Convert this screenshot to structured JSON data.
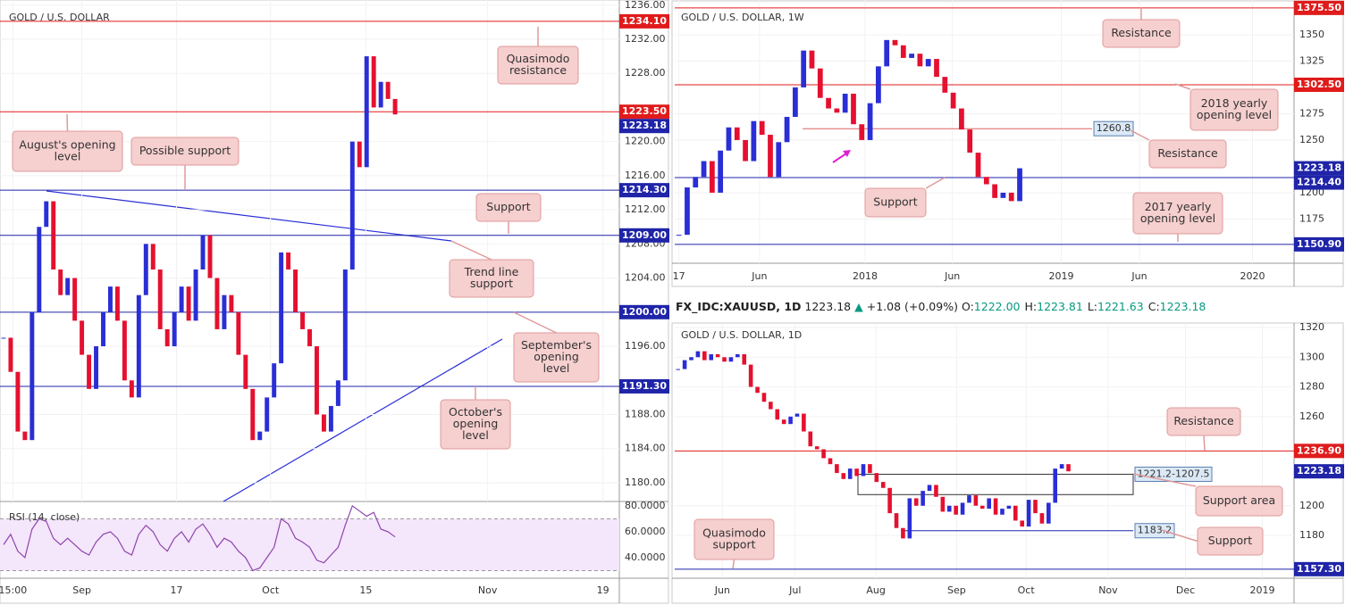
{
  "chart_data": [
    {
      "type": "candlestick",
      "title": "GOLD / U.S. DOLLAR",
      "up_color": "#2a2ed6",
      "down_color": "#e5102f",
      "grid": true,
      "values": [
        1197,
        1193,
        1186,
        1185,
        1200,
        1210,
        1213,
        1205,
        1202,
        1204,
        1199,
        1195,
        1191,
        1196,
        1200,
        1203,
        1199,
        1192,
        1190,
        1202,
        1208,
        1205,
        1198,
        1196,
        1200,
        1203,
        1199,
        1205,
        1209,
        1204,
        1198,
        1202,
        1200,
        1195,
        1191,
        1185,
        1186,
        1190,
        1194,
        1207,
        1205,
        1200,
        1198,
        1196,
        1188,
        1186,
        1189,
        1192,
        1205,
        1220,
        1217,
        1230,
        1224,
        1227,
        1225,
        1223.18
      ],
      "xlim": [
        0,
        87
      ],
      "xticks": [
        {
          "value": 1.8,
          "label": "15:00"
        },
        {
          "value": 11.5,
          "label": "Sep"
        },
        {
          "value": 24.8,
          "label": "17"
        },
        {
          "value": 38,
          "label": "Oct"
        },
        {
          "value": 51.4,
          "label": "15"
        },
        {
          "value": 68.5,
          "label": "Nov"
        },
        {
          "value": 84.7,
          "label": "19"
        }
      ],
      "ylim": [
        1177.8,
        1236.6
      ],
      "yticks": [
        {
          "value": 1236,
          "label": "1236.00"
        },
        {
          "value": 1232,
          "label": "1232.00"
        },
        {
          "value": 1228,
          "label": "1228.00"
        },
        {
          "value": 1220,
          "label": "1220.00"
        },
        {
          "value": 1216,
          "label": "1216.00"
        },
        {
          "value": 1212,
          "label": "1212.00"
        },
        {
          "value": 1208,
          "label": "1208.00"
        },
        {
          "value": 1204,
          "label": "1204.00"
        },
        {
          "value": 1196,
          "label": "1196.00"
        },
        {
          "value": 1188,
          "label": "1188.00"
        },
        {
          "value": 1184,
          "label": "1184.00"
        },
        {
          "value": 1180,
          "label": "1180.00"
        }
      ],
      "levels": [
        {
          "value": 1234.1,
          "label": "1234.10",
          "color": "#e01b1b"
        },
        {
          "value": 1223.5,
          "label": "1223.50",
          "color": "#e01b1b"
        },
        {
          "value": 1214.3,
          "label": "1214.30",
          "color": "#1f24a8"
        },
        {
          "value": 1209,
          "label": "1209.00",
          "color": "#1f24a8"
        },
        {
          "value": 1200,
          "label": "1200.00",
          "color": "#1f24a8"
        },
        {
          "value": 1191.3,
          "label": "1191.30",
          "color": "#1f24a8"
        }
      ],
      "last": {
        "value": 1223.18,
        "label": "1223.18",
        "color": "#1f24a8"
      },
      "annotations": [
        {
          "lines": [
            "Quasimodo",
            "resistance"
          ]
        },
        {
          "lines": [
            "August's opening",
            "level"
          ]
        },
        {
          "lines": [
            "Possible support"
          ]
        },
        {
          "lines": [
            "Support"
          ]
        },
        {
          "lines": [
            "Trend line",
            "support"
          ]
        },
        {
          "lines": [
            "September's",
            "opening",
            "level"
          ]
        },
        {
          "lines": [
            "October's",
            "opening",
            "level"
          ]
        }
      ],
      "rsi": {
        "label": "RSI (14, close)",
        "color": "#8e44ad",
        "band": [
          30,
          70
        ],
        "ylim": [
          24.1,
          83.4
        ],
        "yticks": [
          {
            "value": 80,
            "label": "80.0000"
          },
          {
            "value": 60,
            "label": "60.0000"
          },
          {
            "value": 40,
            "label": "40.0000"
          }
        ],
        "values": [
          50,
          58,
          45,
          40,
          62,
          70,
          68,
          55,
          50,
          55,
          50,
          45,
          42,
          52,
          58,
          60,
          55,
          45,
          42,
          58,
          65,
          60,
          50,
          45,
          55,
          60,
          52,
          62,
          66,
          58,
          48,
          55,
          52,
          45,
          40,
          30,
          32,
          40,
          48,
          70,
          66,
          55,
          52,
          48,
          38,
          36,
          42,
          48,
          65,
          80,
          76,
          72,
          75,
          62,
          60,
          56
        ]
      }
    },
    {
      "type": "candlestick",
      "title": "GOLD / U.S. DOLLAR, 1W",
      "up_color": "#2a2ed6",
      "down_color": "#e5102f",
      "grid": true,
      "values": [
        1160,
        1205,
        1215,
        1230,
        1200,
        1240,
        1262,
        1250,
        1230,
        1268,
        1255,
        1215,
        1248,
        1272,
        1300,
        1335,
        1318,
        1290,
        1280,
        1276,
        1294,
        1265,
        1250,
        1285,
        1320,
        1345,
        1340,
        1328,
        1332,
        1320,
        1327,
        1310,
        1295,
        1280,
        1260,
        1238,
        1215,
        1208,
        1195,
        1200,
        1192,
        1223.18
      ],
      "xlim": [
        0,
        74.5
      ],
      "xticks": [
        {
          "value": 0.5,
          "label": "17"
        },
        {
          "value": 10.2,
          "label": "Jun"
        },
        {
          "value": 22.9,
          "label": "2018"
        },
        {
          "value": 33.4,
          "label": "Jun"
        },
        {
          "value": 46.5,
          "label": "2019"
        },
        {
          "value": 55.9,
          "label": "Jun"
        },
        {
          "value": 69.5,
          "label": "2020"
        }
      ],
      "ylim": [
        1133,
        1383
      ],
      "yticks": [
        1350,
        1325,
        1275,
        1250,
        1200,
        1175
      ],
      "levels": [
        {
          "value": 1375.5,
          "label": "1375.50",
          "color": "#e01b1b"
        },
        {
          "value": 1302.5,
          "label": "1302.50",
          "color": "#e01b1b"
        },
        {
          "value": 1260.8,
          "color": "#e06060",
          "style": "tag"
        },
        {
          "value": 1214.4,
          "label": "1214.40",
          "color": "#1f24a8"
        },
        {
          "value": 1150.9,
          "label": "1150.90",
          "color": "#1f24a8"
        }
      ],
      "last": {
        "value": 1223.18,
        "label": "1223.18",
        "color": "#1f24a8"
      },
      "annotations": [
        {
          "lines": [
            "Resistance"
          ]
        },
        {
          "lines": [
            "2018 yearly",
            "opening level"
          ]
        },
        {
          "lines": [
            "Resistance"
          ]
        },
        {
          "lines": [
            "Support"
          ]
        },
        {
          "lines": [
            "2017 yearly",
            "opening level"
          ]
        }
      ]
    },
    {
      "type": "candlestick",
      "title": "GOLD / U.S. DOLLAR, 1D",
      "up_color": "#2a2ed6",
      "down_color": "#e5102f",
      "grid": true,
      "values": [
        1292,
        1298,
        1300,
        1304,
        1298,
        1302,
        1300,
        1297,
        1300,
        1302,
        1295,
        1280,
        1276,
        1270,
        1265,
        1258,
        1255,
        1260,
        1262,
        1250,
        1240,
        1238,
        1232,
        1228,
        1222,
        1218,
        1225,
        1220,
        1228,
        1222,
        1216,
        1212,
        1195,
        1185,
        1178,
        1205,
        1200,
        1210,
        1214,
        1206,
        1196,
        1200,
        1194,
        1202,
        1207,
        1200,
        1198,
        1205,
        1194,
        1198,
        1200,
        1190,
        1186,
        1204,
        1195,
        1188,
        1202,
        1225,
        1228,
        1223.18
      ],
      "xlim": [
        0,
        93.6
      ],
      "xticks": [
        {
          "value": 7.2,
          "label": "Jun"
        },
        {
          "value": 18.2,
          "label": "Jul"
        },
        {
          "value": 30.4,
          "label": "Aug"
        },
        {
          "value": 42.6,
          "label": "Sep"
        },
        {
          "value": 53.1,
          "label": "Oct"
        },
        {
          "value": 65.5,
          "label": "Nov"
        },
        {
          "value": 77.2,
          "label": "Dec"
        },
        {
          "value": 88.8,
          "label": "2019"
        }
      ],
      "ylim": [
        1151.2,
        1323
      ],
      "yticks": [
        1320,
        1300,
        1280,
        1260,
        1200,
        1180
      ],
      "levels": [
        {
          "value": 1236.9,
          "label": "1236.90",
          "color": "#e01b1b"
        },
        {
          "value": 1183.2,
          "color": "#1f24a8",
          "style": "tag"
        },
        {
          "value": 1157.3,
          "label": "1157.30",
          "color": "#1f24a8"
        }
      ],
      "zone": {
        "label": "1221.2-1207.5",
        "values": [
          1221.2,
          1207.5
        ]
      },
      "last": {
        "value": 1223.18,
        "label": "1223.18",
        "color": "#1f24a8"
      },
      "annotations": [
        {
          "lines": [
            "Resistance"
          ]
        },
        {
          "lines": [
            "Support area"
          ]
        },
        {
          "lines": [
            "Support"
          ]
        },
        {
          "lines": [
            "Quasimodo",
            "support"
          ]
        }
      ]
    }
  ],
  "quote_bar": {
    "symbol": "FX_IDC:XAUUSD, 1D",
    "last": "1223.18",
    "change": "+1.08 (+0.09%)",
    "fields": [
      {
        "label": "O:",
        "value": "1222.00"
      },
      {
        "label": "H:",
        "value": "1223.81"
      },
      {
        "label": "L:",
        "value": "1221.63"
      },
      {
        "label": "C:",
        "value": "1223.18"
      }
    ]
  }
}
